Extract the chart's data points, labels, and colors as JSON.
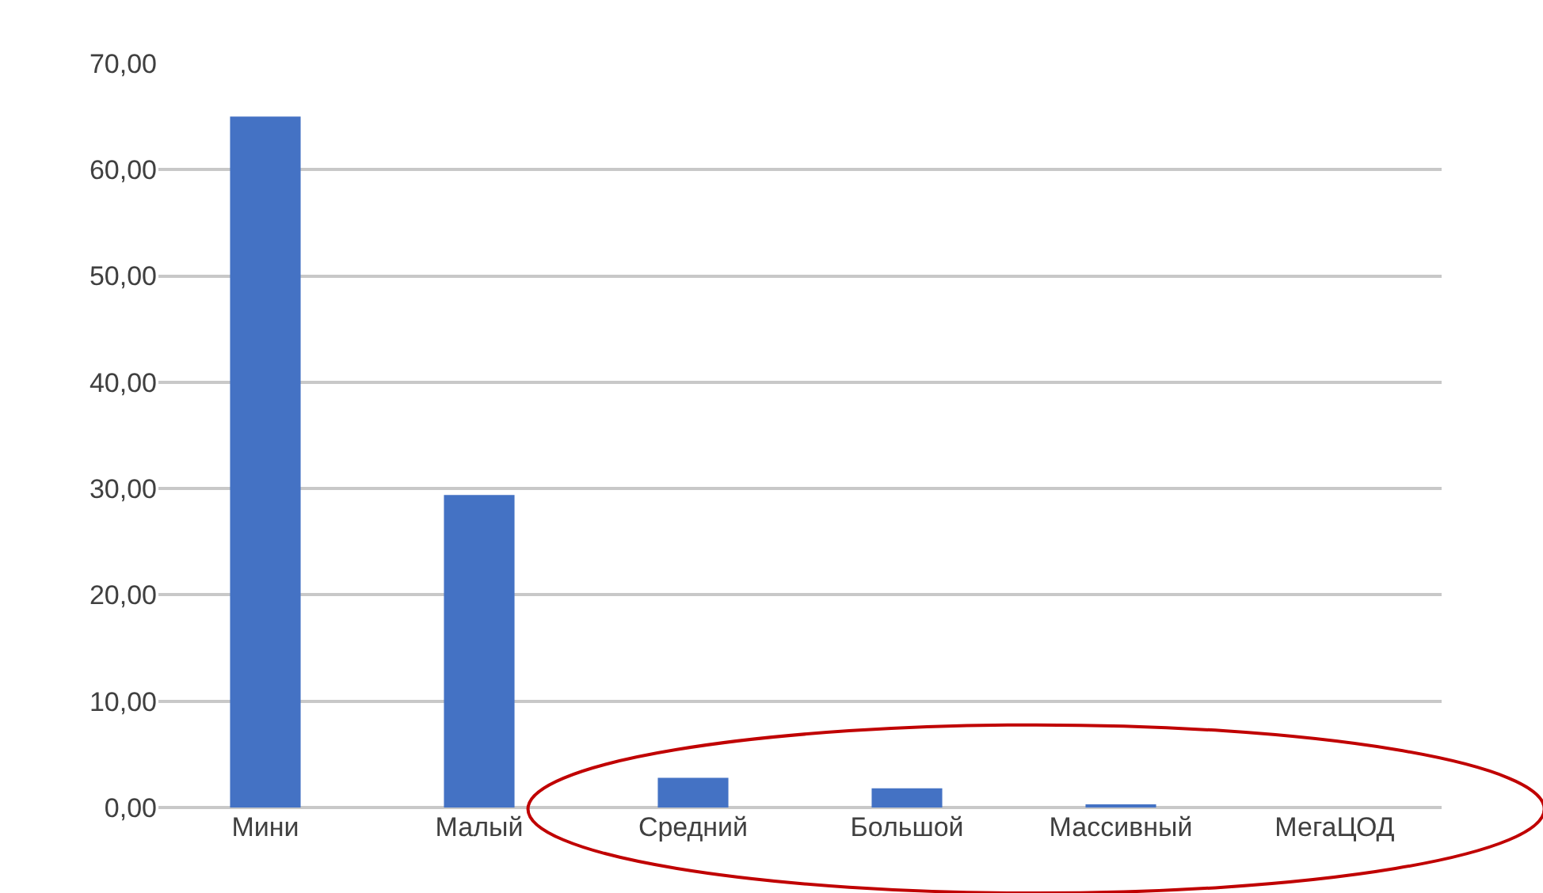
{
  "chart_data": {
    "type": "bar",
    "categories": [
      "Мини",
      "Малый",
      "Средний",
      "Большой",
      "Массивный",
      "МегаЦОД"
    ],
    "values": [
      65.0,
      29.4,
      2.8,
      1.8,
      0.3,
      0.0
    ],
    "color": "#4472c4",
    "ylim": [
      0,
      70
    ],
    "yticks": [
      {
        "value": 0,
        "label": "0,00"
      },
      {
        "value": 10,
        "label": "10,00"
      },
      {
        "value": 20,
        "label": "20,00"
      },
      {
        "value": 30,
        "label": "30,00"
      },
      {
        "value": 40,
        "label": "40,00"
      },
      {
        "value": 50,
        "label": "50,00"
      },
      {
        "value": 60,
        "label": "60,00"
      },
      {
        "value": 70,
        "label": "70,00"
      }
    ],
    "grid": "y"
  }
}
